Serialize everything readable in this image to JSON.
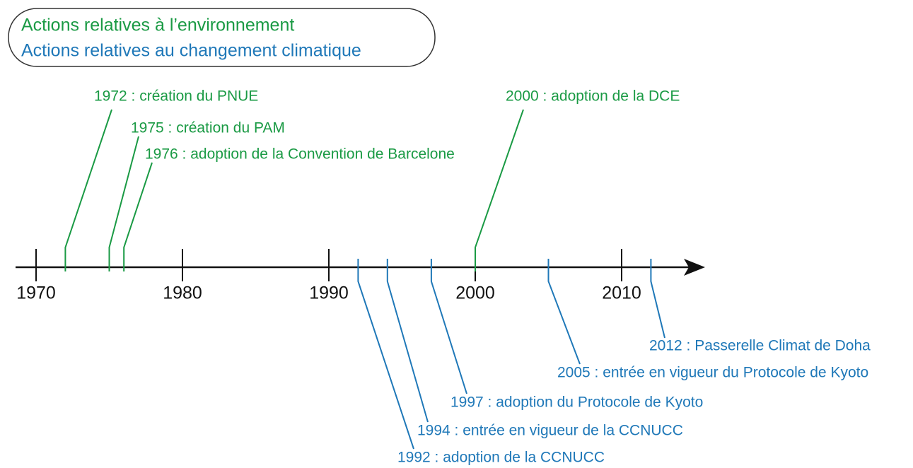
{
  "legend": {
    "environment": "Actions relatives à l’environnement",
    "climate": "Actions relatives au changement climatique"
  },
  "colors": {
    "environment": "#1a9a44",
    "climate": "#1f78b8"
  },
  "axis": {
    "ticks": [
      1970,
      1980,
      1990,
      2000,
      2010
    ]
  },
  "events": [
    {
      "year": 1972,
      "group": "environment",
      "label": "1972 : création du PNUE"
    },
    {
      "year": 1975,
      "group": "environment",
      "label": "1975 : création du PAM"
    },
    {
      "year": 1976,
      "group": "environment",
      "label": "1976 : adoption de la Convention de Barcelone"
    },
    {
      "year": 2000,
      "group": "environment",
      "label": "2000 : adoption de la DCE"
    },
    {
      "year": 1992,
      "group": "climate",
      "label": "1992 : adoption de la CCNUCC"
    },
    {
      "year": 1994,
      "group": "climate",
      "label": "1994 : entrée en vigueur de la CCNUCC"
    },
    {
      "year": 1997,
      "group": "climate",
      "label": "1997 : adoption du Protocole de Kyoto"
    },
    {
      "year": 2005,
      "group": "climate",
      "label": "2005 : entrée en vigueur du Protocole de Kyoto"
    },
    {
      "year": 2012,
      "group": "climate",
      "label": "2012 : Passerelle Climat de Doha"
    }
  ]
}
